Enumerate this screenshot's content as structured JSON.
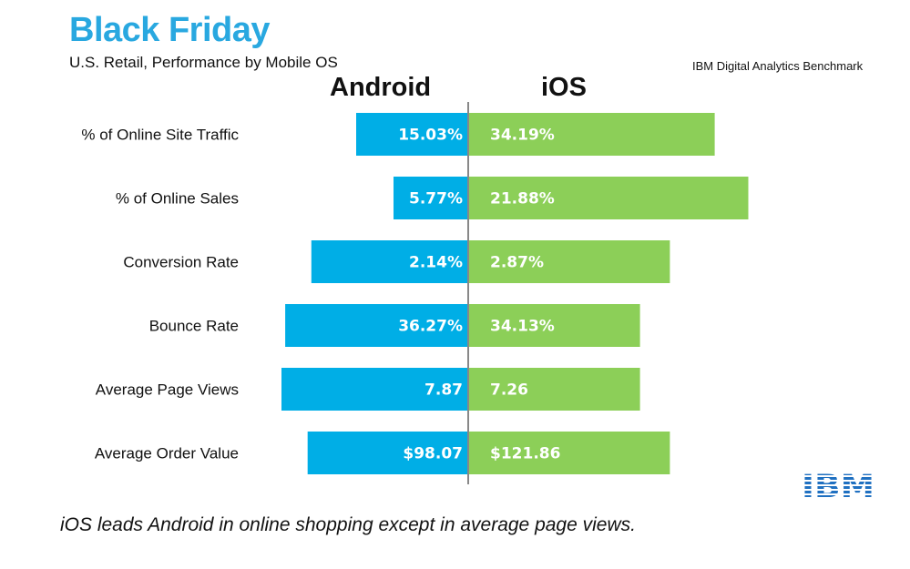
{
  "header": {
    "title": "Black Friday",
    "subtitle": "U.S. Retail, Performance by Mobile OS",
    "source": "IBM Digital Analytics Benchmark"
  },
  "footer": {
    "caption": "iOS leads Android in online shopping except in average page views."
  },
  "logo": {
    "text": "IBM",
    "color": "#1f70c1"
  },
  "colors": {
    "android": "#00aee6",
    "ios": "#8ccf58",
    "axis": "#888888"
  },
  "chart_data": {
    "type": "bar",
    "orientation": "horizontal-diverging",
    "categories": [
      "% of Online Site Traffic",
      "% of Online Sales",
      "Conversion Rate",
      "Bounce Rate",
      "Average Page Views",
      "Average Order Value"
    ],
    "series": [
      {
        "name": "Android",
        "labels": [
          "15.03%",
          "5.77%",
          "2.14%",
          "36.27%",
          "7.87",
          "$98.07"
        ]
      },
      {
        "name": "iOS",
        "labels": [
          "34.19%",
          "21.88%",
          "2.87%",
          "34.13%",
          "7.26",
          "$121.86"
        ]
      }
    ],
    "bar_fraction": {
      "Android": [
        0.3,
        0.2,
        0.42,
        0.49,
        0.5,
        0.43
      ],
      "iOS": [
        0.66,
        0.75,
        0.54,
        0.46,
        0.46,
        0.54
      ]
    },
    "legend": "top"
  }
}
